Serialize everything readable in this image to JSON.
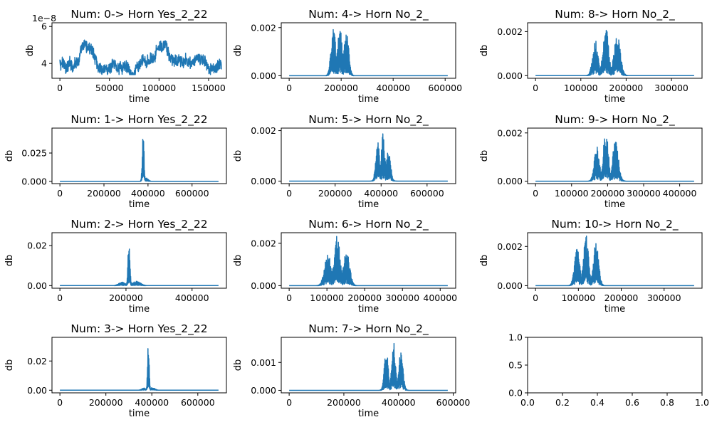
{
  "chart_data": [
    {
      "type": "line",
      "title": "Num: 0-> Horn Yes_2_22",
      "xlabel": "time",
      "ylabel": "db",
      "xlim": [
        -8000,
        168000
      ],
      "ylim": [
        3.2,
        6.2
      ],
      "xticks": [
        0,
        50000,
        100000,
        150000
      ],
      "xtick_labels": [
        "0",
        "50000",
        "100000",
        "150000"
      ],
      "yticks": [
        4,
        6
      ],
      "ytick_labels": [
        "4",
        "6"
      ],
      "y_offset_label": "1e−8",
      "color": "#1f77b4",
      "signal": "noise",
      "n": 163000,
      "baseline": 3.9,
      "bursts": []
    },
    {
      "type": "line",
      "title": "Num: 1-> Horn Yes_2_22",
      "xlabel": "time",
      "ylabel": "db",
      "xlim": [
        -36000,
        756000
      ],
      "ylim": [
        -0.002,
        0.047
      ],
      "xticks": [
        0,
        200000,
        400000,
        600000
      ],
      "xtick_labels": [
        "0",
        "200000",
        "400000",
        "600000"
      ],
      "yticks": [
        0.0,
        0.025
      ],
      "ytick_labels": [
        "0.000",
        "0.025"
      ],
      "color": "#1f77b4",
      "signal": "spike",
      "n": 720000,
      "bursts": [
        {
          "center": 378000,
          "width": 4000,
          "amp": 0.045
        },
        {
          "center": 392000,
          "width": 9000,
          "amp": 0.003
        }
      ]
    },
    {
      "type": "line",
      "title": "Num: 2-> Horn Yes_2_22",
      "xlabel": "time",
      "ylabel": "db",
      "xlim": [
        -24000,
        504000
      ],
      "ylim": [
        -0.0013,
        0.0264
      ],
      "xticks": [
        0,
        200000,
        400000
      ],
      "xtick_labels": [
        "0",
        "200000",
        "400000"
      ],
      "yticks": [
        0.0,
        0.02
      ],
      "ytick_labels": [
        "0.00",
        "0.02"
      ],
      "color": "#1f77b4",
      "signal": "spike",
      "n": 480000,
      "bursts": [
        {
          "center": 209000,
          "width": 3000,
          "amp": 0.025
        },
        {
          "center": 188000,
          "width": 10000,
          "amp": 0.0018
        },
        {
          "center": 232000,
          "width": 12000,
          "amp": 0.0022
        }
      ]
    },
    {
      "type": "line",
      "title": "Num: 3-> Horn Yes_2_22",
      "xlabel": "time",
      "ylabel": "db",
      "xlim": [
        -34500,
        724500
      ],
      "ylim": [
        -0.0018,
        0.0362
      ],
      "xticks": [
        0,
        200000,
        400000,
        600000
      ],
      "xtick_labels": [
        "0",
        "200000",
        "400000",
        "600000"
      ],
      "yticks": [
        0.0,
        0.02
      ],
      "ytick_labels": [
        "0.00",
        "0.02"
      ],
      "color": "#1f77b4",
      "signal": "spike",
      "n": 690000,
      "bursts": [
        {
          "center": 385000,
          "width": 3500,
          "amp": 0.0345
        },
        {
          "center": 365000,
          "width": 9000,
          "amp": 0.0015
        },
        {
          "center": 402000,
          "width": 11000,
          "amp": 0.0018
        }
      ]
    },
    {
      "type": "line",
      "title": "Num: 4-> Horn No_2_",
      "xlabel": "time",
      "ylabel": "db",
      "xlim": [
        -30500,
        640500
      ],
      "ylim": [
        -0.000105,
        0.0022
      ],
      "xticks": [
        0,
        200000,
        400000,
        600000
      ],
      "xtick_labels": [
        "0",
        "200000",
        "400000",
        "600000"
      ],
      "yticks": [
        0.0,
        0.002
      ],
      "ytick_labels": [
        "0.000",
        "0.002"
      ],
      "color": "#1f77b4",
      "signal": "bursts",
      "n": 610000,
      "bursts": [
        {
          "center": 170000,
          "width": 9000,
          "amp": 0.00205
        },
        {
          "center": 195000,
          "width": 9000,
          "amp": 0.00203
        },
        {
          "center": 220000,
          "width": 9000,
          "amp": 0.0019
        }
      ]
    },
    {
      "type": "line",
      "title": "Num: 5-> Horn No_2_",
      "xlabel": "time",
      "ylabel": "db",
      "xlim": [
        -34500,
        724500
      ],
      "ylim": [
        -0.0001,
        0.0021
      ],
      "xticks": [
        0,
        200000,
        400000,
        600000
      ],
      "xtick_labels": [
        "0",
        "200000",
        "400000",
        "600000"
      ],
      "yticks": [
        0.0,
        0.002
      ],
      "ytick_labels": [
        "0.000",
        "0.002"
      ],
      "color": "#1f77b4",
      "signal": "bursts",
      "n": 690000,
      "bursts": [
        {
          "center": 385000,
          "width": 8000,
          "amp": 0.0017
        },
        {
          "center": 408000,
          "width": 8000,
          "amp": 0.0019
        },
        {
          "center": 432000,
          "width": 9000,
          "amp": 0.00125
        }
      ]
    },
    {
      "type": "line",
      "title": "Num: 6-> Horn No_2_",
      "xlabel": "time",
      "ylabel": "db",
      "xlim": [
        -21000,
        441000
      ],
      "ylim": [
        -0.00012,
        0.0025
      ],
      "xticks": [
        0,
        100000,
        200000,
        300000,
        400000
      ],
      "xtick_labels": [
        "0",
        "100000",
        "200000",
        "300000",
        "400000"
      ],
      "yticks": [
        0.0,
        0.002
      ],
      "ytick_labels": [
        "0.000",
        "0.002"
      ],
      "color": "#1f77b4",
      "signal": "bursts",
      "n": 420000,
      "bursts": [
        {
          "center": 103000,
          "width": 9000,
          "amp": 0.0015
        },
        {
          "center": 127000,
          "width": 8000,
          "amp": 0.0024
        },
        {
          "center": 152000,
          "width": 8000,
          "amp": 0.0017
        }
      ]
    },
    {
      "type": "line",
      "title": "Num: 7-> Horn No_2_",
      "xlabel": "time",
      "ylabel": "db",
      "xlim": [
        -29000,
        609000
      ],
      "ylim": [
        -9e-05,
        0.0019
      ],
      "xticks": [
        0,
        200000,
        400000,
        600000
      ],
      "xtick_labels": [
        "0",
        "200000",
        "400000",
        "600000"
      ],
      "yticks": [
        0.0,
        0.001
      ],
      "ytick_labels": [
        "0.000",
        "0.001"
      ],
      "color": "#1f77b4",
      "signal": "bursts",
      "n": 580000,
      "bursts": [
        {
          "center": 355000,
          "width": 7000,
          "amp": 0.0015
        },
        {
          "center": 382000,
          "width": 7000,
          "amp": 0.0018
        },
        {
          "center": 408000,
          "width": 8000,
          "amp": 0.0014
        }
      ]
    },
    {
      "type": "line",
      "title": "Num: 8-> Horn No_2_",
      "xlabel": "time",
      "ylabel": "db",
      "xlim": [
        -17500,
        367500
      ],
      "ylim": [
        -0.00012,
        0.0024
      ],
      "xticks": [
        0,
        100000,
        200000,
        300000
      ],
      "xtick_labels": [
        "0",
        "100000",
        "200000",
        "300000"
      ],
      "yticks": [
        0.0,
        0.002
      ],
      "ytick_labels": [
        "0.000",
        "0.002"
      ],
      "color": "#1f77b4",
      "signal": "bursts",
      "n": 350000,
      "bursts": [
        {
          "center": 132000,
          "width": 6000,
          "amp": 0.0016
        },
        {
          "center": 155000,
          "width": 6000,
          "amp": 0.0023
        },
        {
          "center": 180000,
          "width": 7000,
          "amp": 0.0019
        }
      ]
    },
    {
      "type": "line",
      "title": "Num: 9-> Horn No_2_",
      "xlabel": "time",
      "ylabel": "db",
      "xlim": [
        -22000,
        462000
      ],
      "ylim": [
        -0.0001,
        0.0022
      ],
      "xticks": [
        0,
        100000,
        200000,
        300000,
        400000
      ],
      "xtick_labels": [
        "0",
        "100000",
        "200000",
        "300000",
        "400000"
      ],
      "yticks": [
        0.0,
        0.002
      ],
      "ytick_labels": [
        "0.000",
        "0.002"
      ],
      "color": "#1f77b4",
      "signal": "bursts",
      "n": 440000,
      "bursts": [
        {
          "center": 170000,
          "width": 7000,
          "amp": 0.0015
        },
        {
          "center": 195000,
          "width": 7000,
          "amp": 0.0021
        },
        {
          "center": 222000,
          "width": 8000,
          "amp": 0.0017
        }
      ]
    },
    {
      "type": "line",
      "title": "Num: 10-> Horn No_2_",
      "xlabel": "time",
      "ylabel": "db",
      "xlim": [
        -18500,
        388500
      ],
      "ylim": [
        -0.00013,
        0.0027
      ],
      "xticks": [
        0,
        100000,
        200000,
        300000
      ],
      "xtick_labels": [
        "0",
        "100000",
        "200000",
        "300000"
      ],
      "yticks": [
        0.0,
        0.002
      ],
      "ytick_labels": [
        "0.000",
        "0.002"
      ],
      "color": "#1f77b4",
      "signal": "bursts",
      "n": 370000,
      "bursts": [
        {
          "center": 97000,
          "width": 6000,
          "amp": 0.0019
        },
        {
          "center": 118000,
          "width": 6000,
          "amp": 0.0026
        },
        {
          "center": 141000,
          "width": 6000,
          "amp": 0.0023
        }
      ]
    },
    {
      "type": "empty",
      "title": "",
      "xlabel": "",
      "ylabel": "",
      "xlim": [
        0,
        1
      ],
      "ylim": [
        0,
        1
      ],
      "xticks": [
        0,
        0.2,
        0.4,
        0.6,
        0.8,
        1.0
      ],
      "xtick_labels": [
        "0.0",
        "0.2",
        "0.4",
        "0.6",
        "0.8",
        "1.0"
      ],
      "yticks": [
        0,
        0.5,
        1.0
      ],
      "ytick_labels": [
        "0.0",
        "0.5",
        "1.0"
      ]
    }
  ]
}
